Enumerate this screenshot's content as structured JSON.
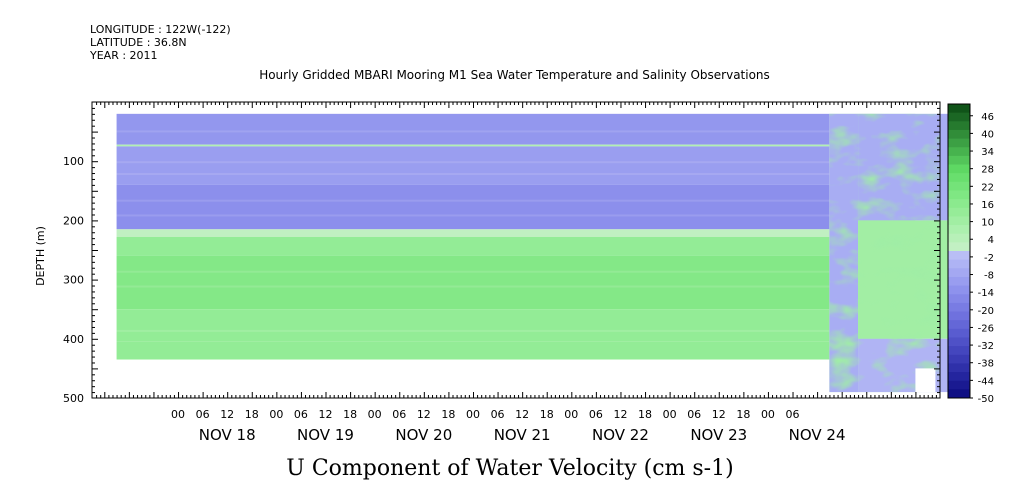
{
  "header": {
    "longitude": "LONGITUDE : 122W(-122)",
    "latitude": "LATITUDE : 36.8N",
    "year": "YEAR : 2011",
    "title": "Hourly Gridded MBARI Mooring M1 Sea Water Temperature and Salinity Observations"
  },
  "chart_data": {
    "type": "heatmap",
    "title": "Hourly Gridded MBARI Mooring M1 Sea Water Temperature and Salinity Observations",
    "xlabel": "U Component of Water Velocity (cm s-1)",
    "ylabel": "DEPTH (m)",
    "x_hours_range": [
      -21,
      186
    ],
    "x_start_day": "NOV 18",
    "ylim": [
      500,
      0
    ],
    "y_ticks": [
      100,
      200,
      300,
      400,
      500
    ],
    "y_tick_labels": [
      "100",
      "200",
      "300",
      "400",
      "500"
    ],
    "x_day_labels": [
      "NOV 18",
      "NOV 19",
      "NOV 20",
      "NOV 21",
      "NOV 22",
      "NOV 23",
      "NOV 24"
    ],
    "x_hour_labels": [
      "00",
      "06",
      "12",
      "18",
      "00",
      "06",
      "12",
      "18",
      "00",
      "06",
      "12",
      "18",
      "00",
      "06",
      "12",
      "18",
      "00",
      "06",
      "12",
      "18",
      "00",
      "06",
      "12",
      "18",
      "00",
      "06"
    ],
    "colorbar": {
      "levels": [
        46,
        40,
        34,
        28,
        22,
        16,
        10,
        4,
        -2,
        -8,
        -14,
        -20,
        -26,
        -32,
        -38,
        -44,
        -50
      ],
      "min": -50,
      "max": 50
    },
    "regions": [
      {
        "x_hours": [
          -15,
          159
        ],
        "depth": [
          20,
          72
        ],
        "value": -12
      },
      {
        "x_hours": [
          -15,
          159
        ],
        "depth": [
          72,
          75
        ],
        "value": 6
      },
      {
        "x_hours": [
          -15,
          159
        ],
        "depth": [
          75,
          140
        ],
        "value": -10
      },
      {
        "x_hours": [
          -15,
          159
        ],
        "depth": [
          140,
          215
        ],
        "value": -14
      },
      {
        "x_hours": [
          -15,
          159
        ],
        "depth": [
          215,
          228
        ],
        "value": 2
      },
      {
        "x_hours": [
          -15,
          159
        ],
        "depth": [
          228,
          260
        ],
        "value": 14
      },
      {
        "x_hours": [
          -15,
          159
        ],
        "depth": [
          260,
          350
        ],
        "value": 18
      },
      {
        "x_hours": [
          -15,
          159
        ],
        "depth": [
          350,
          405
        ],
        "value": 14
      },
      {
        "x_hours": [
          -15,
          159
        ],
        "depth": [
          405,
          435
        ],
        "value": 14
      },
      {
        "x_hours": [
          159,
          180
        ],
        "depth": [
          20,
          490
        ],
        "value": 4
      },
      {
        "x_hours": [
          159,
          166
        ],
        "depth": [
          20,
          490
        ],
        "value": -6
      },
      {
        "x_hours": [
          166,
          190
        ],
        "depth": [
          20,
          200
        ],
        "value": -6
      },
      {
        "x_hours": [
          166,
          190
        ],
        "depth": [
          200,
          400
        ],
        "value": 10
      },
      {
        "x_hours": [
          166,
          190
        ],
        "depth": [
          400,
          490
        ],
        "value": -4
      }
    ]
  }
}
